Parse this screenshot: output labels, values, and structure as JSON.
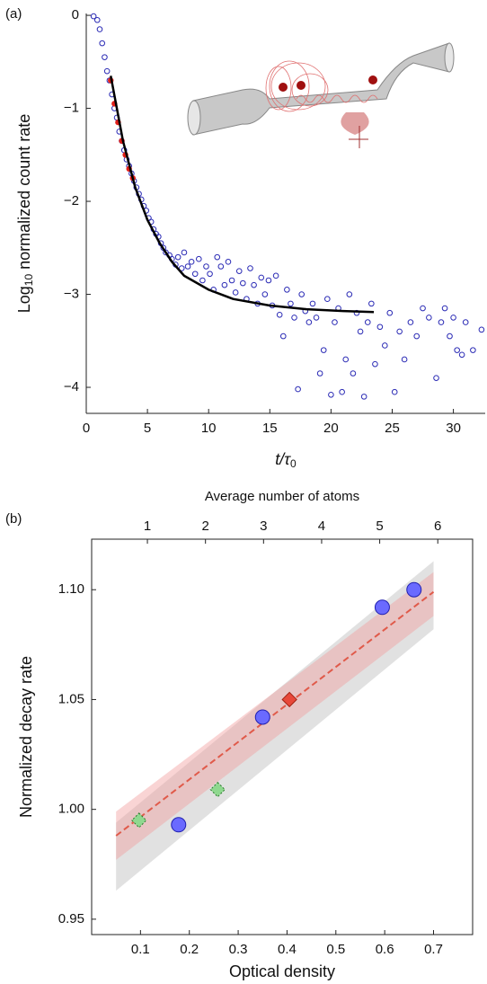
{
  "chart_data": [
    {
      "type": "scatter",
      "panel": "(a)",
      "xlabel": {
        "text": "t/τ",
        "subscript": "0"
      },
      "ylabel": {
        "text": "Log",
        "subscript": "10",
        "rest": " normalized count rate"
      },
      "xlim": [
        0,
        32.6
      ],
      "ylim": [
        -4.28,
        0.02
      ],
      "xticks": [
        0,
        5,
        10,
        15,
        20,
        25,
        30
      ],
      "yticks": [
        0,
        {
          "value": -1,
          "label": "−1"
        },
        {
          "value": -2,
          "label": "−2"
        },
        {
          "value": -3,
          "label": "−3"
        },
        {
          "value": -4,
          "label": "−4"
        }
      ],
      "series": [
        {
          "marker": "circle-open",
          "color": "#2b2bb5",
          "x": [
            0.6,
            0.9,
            1.1,
            1.3,
            1.5,
            1.7,
            1.9,
            2.1,
            2.3,
            2.5,
            2.7,
            2.9,
            3.1,
            3.3,
            3.5,
            3.7,
            3.9,
            4.1,
            4.3,
            4.5,
            4.7,
            4.9,
            5.1,
            5.3,
            5.5,
            5.7,
            5.9,
            6.1,
            6.3,
            6.5,
            6.8,
            7.0,
            7.3,
            7.5,
            7.8,
            8.0,
            8.3,
            8.6,
            8.9,
            9.2,
            9.5,
            9.8,
            10.1,
            10.4,
            10.7,
            11.0,
            11.3,
            11.6,
            11.9,
            12.2,
            12.5,
            12.8,
            13.1,
            13.4,
            13.7,
            14.0,
            14.3,
            14.6,
            14.9,
            15.2,
            15.5,
            15.8,
            16.1,
            16.4,
            16.7,
            17.0,
            17.3,
            17.6,
            17.9,
            18.2,
            18.5,
            18.8,
            19.1,
            19.4,
            19.7,
            20.0,
            20.3,
            20.6,
            20.9,
            21.2,
            21.5,
            21.8,
            22.1,
            22.4,
            22.7,
            23.0,
            23.3,
            23.6,
            24.0,
            24.4,
            24.8,
            25.2,
            25.6,
            26.0,
            26.5,
            27.0,
            27.5,
            28.0,
            28.6,
            29.0,
            29.3,
            29.7,
            30.0,
            30.3,
            30.7,
            31.0,
            31.6,
            32.3
          ],
          "y": [
            -0.01,
            -0.05,
            -0.15,
            -0.3,
            -0.45,
            -0.6,
            -0.7,
            -0.85,
            -1.0,
            -1.1,
            -1.25,
            -1.35,
            -1.45,
            -1.55,
            -1.62,
            -1.7,
            -1.78,
            -1.85,
            -1.92,
            -1.98,
            -2.05,
            -2.1,
            -2.18,
            -2.22,
            -2.3,
            -2.35,
            -2.38,
            -2.45,
            -2.5,
            -2.55,
            -2.58,
            -2.62,
            -2.68,
            -2.6,
            -2.72,
            -2.55,
            -2.7,
            -2.65,
            -2.78,
            -2.62,
            -2.85,
            -2.7,
            -2.78,
            -2.95,
            -2.6,
            -2.7,
            -2.9,
            -2.65,
            -2.85,
            -2.98,
            -2.75,
            -2.88,
            -3.05,
            -2.72,
            -2.9,
            -3.1,
            -2.82,
            -3.0,
            -2.85,
            -3.12,
            -2.8,
            -3.22,
            -3.45,
            -2.95,
            -3.1,
            -3.25,
            -4.02,
            -3.0,
            -3.18,
            -3.3,
            -3.1,
            -3.25,
            -3.85,
            -3.6,
            -3.05,
            -4.08,
            -3.3,
            -3.15,
            -4.05,
            -3.7,
            -3.0,
            -3.85,
            -3.2,
            -3.4,
            -4.1,
            -3.3,
            -3.1,
            -3.75,
            -3.35,
            -3.55,
            -3.2,
            -4.05,
            -3.4,
            -3.7,
            -3.3,
            -3.45,
            -3.15,
            -3.25,
            -3.9,
            -3.3,
            -3.15,
            -3.45,
            -3.25,
            -3.6,
            -3.65,
            -3.3,
            -3.6,
            -3.38
          ]
        },
        {
          "marker": "circle",
          "color": "#e0201a",
          "x": [
            2.0,
            2.3,
            2.6,
            2.9,
            3.2,
            3.5,
            3.8
          ],
          "y": [
            -0.7,
            -0.95,
            -1.15,
            -1.35,
            -1.5,
            -1.65,
            -1.75
          ]
        },
        {
          "marker": "line",
          "color": "#000000",
          "x": [
            2,
            3,
            4,
            5,
            6,
            7,
            8,
            10,
            12,
            15,
            18,
            21,
            23.5
          ],
          "y": [
            -0.65,
            -1.35,
            -1.85,
            -2.2,
            -2.45,
            -2.65,
            -2.8,
            -2.95,
            -3.05,
            -3.12,
            -3.16,
            -3.18,
            -3.19
          ]
        }
      ]
    },
    {
      "type": "scatter",
      "panel": "(b)",
      "xlabel": {
        "text": "Optical density"
      },
      "ylabel": {
        "text": "Normalized decay rate"
      },
      "x2label": "Average number of atoms",
      "xlim": [
        0,
        0.78
      ],
      "ylim": [
        0.943,
        1.123
      ],
      "x2lim": [
        0.04,
        6.6
      ],
      "xticks": [
        0.1,
        0.2,
        0.3,
        0.4,
        0.5,
        0.6,
        0.7
      ],
      "yticks": [
        0.95,
        {
          "value": 1,
          "label": "1.00"
        },
        1.05,
        {
          "value": 1.1,
          "label": "1.10"
        }
      ],
      "x2ticks": [
        1,
        2,
        3,
        4,
        5,
        6
      ],
      "series": [
        {
          "marker": "band",
          "color": "#bdbdbd",
          "x": [
            0.05,
            0.7
          ],
          "lower": [
            0.963,
            1.082
          ],
          "upper": [
            0.994,
            1.113
          ]
        },
        {
          "marker": "band",
          "color": "#f2a0a0",
          "x": [
            0.05,
            0.7
          ],
          "lower": [
            0.977,
            1.088
          ],
          "upper": [
            0.999,
            1.108
          ]
        },
        {
          "marker": "dashed-line",
          "color": "#e05a4a",
          "x": [
            0.05,
            0.7
          ],
          "y": [
            0.988,
            1.099
          ]
        },
        {
          "marker": "circle-big",
          "color": "#6a6aff",
          "x": [
            0.178,
            0.35,
            0.595,
            0.66
          ],
          "y": [
            0.993,
            1.042,
            1.092,
            1.1
          ]
        },
        {
          "marker": "diamond-dashed",
          "color": "#8fd88f",
          "x": [
            0.097,
            0.258
          ],
          "y": [
            0.995,
            1.009
          ]
        },
        {
          "marker": "diamond",
          "color": "#e8483a",
          "x": [
            0.405
          ],
          "y": [
            1.05
          ]
        }
      ]
    }
  ]
}
